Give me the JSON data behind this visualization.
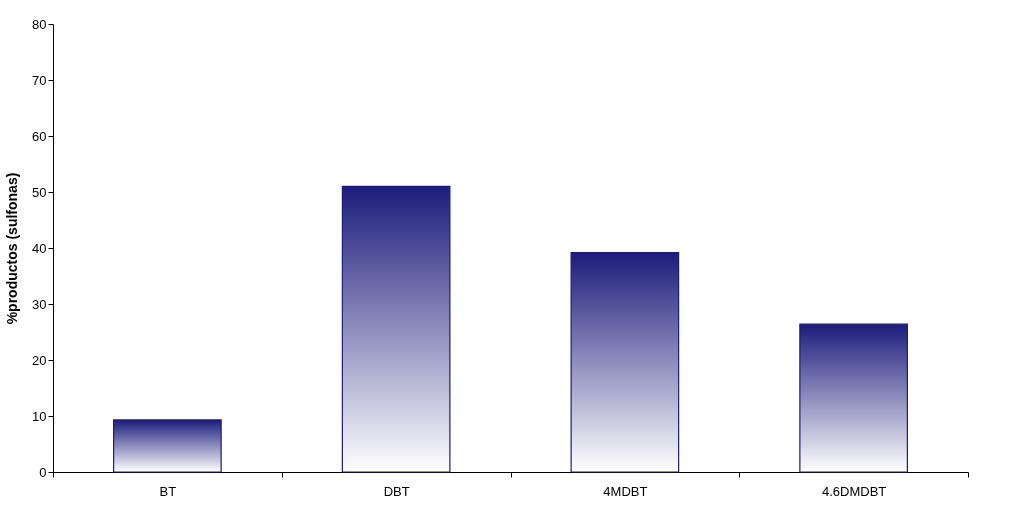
{
  "chart_data": {
    "type": "bar",
    "ylabel": "%productos (sulfonas)",
    "categories": [
      "BT",
      "DBT",
      "4MDBT",
      "4.6DMDBT"
    ],
    "values": [
      9.3,
      51,
      39.2,
      26.4
    ],
    "color": "#1c1c7c",
    "ylim": [
      0,
      80
    ],
    "yticks": [
      0,
      10,
      20,
      30,
      40,
      50,
      60,
      70,
      80
    ],
    "grid": false
  }
}
